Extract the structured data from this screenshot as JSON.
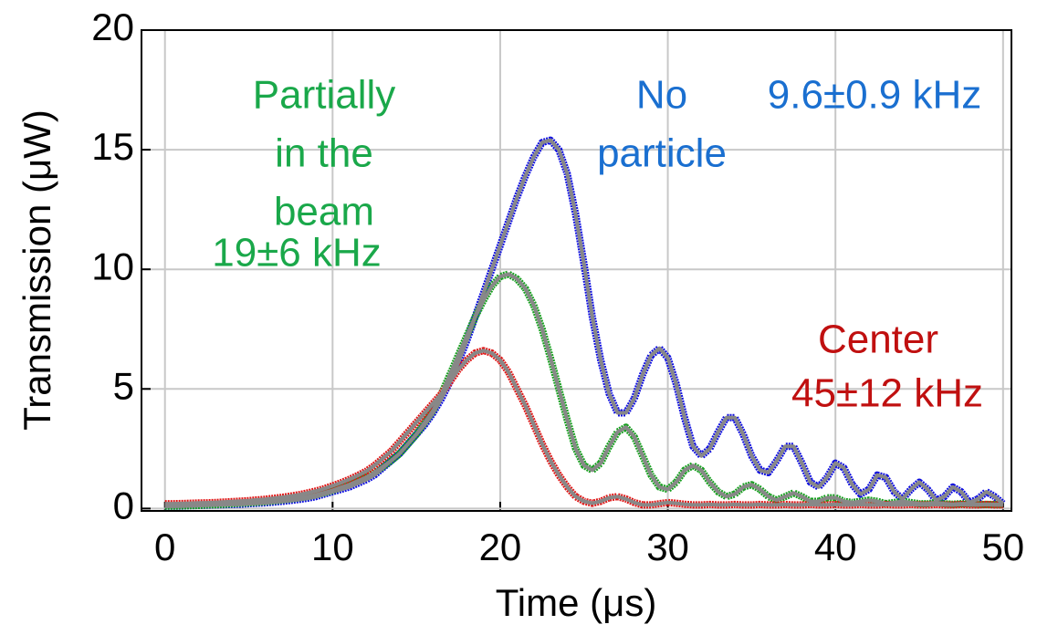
{
  "chart_data": {
    "type": "line",
    "xlabel": "Time (μs)",
    "ylabel": "Transmission (μW)",
    "x": [
      0,
      0.5,
      1,
      1.5,
      2,
      2.5,
      3,
      3.5,
      4,
      4.5,
      5,
      5.5,
      6,
      6.5,
      7,
      7.5,
      8,
      8.5,
      9,
      9.5,
      10,
      10.5,
      11,
      11.5,
      12,
      12.5,
      13,
      13.5,
      14,
      14.5,
      15,
      15.5,
      16,
      16.5,
      17,
      17.5,
      18,
      18.5,
      19,
      19.5,
      20,
      20.5,
      21,
      21.5,
      22,
      22.5,
      23,
      23.5,
      24,
      24.5,
      25,
      25.5,
      26,
      26.5,
      27,
      27.5,
      28,
      28.5,
      29,
      29.5,
      30,
      30.5,
      31,
      31.5,
      32,
      32.5,
      33,
      33.5,
      34,
      34.5,
      35,
      35.5,
      36,
      36.5,
      37,
      37.5,
      38,
      38.5,
      39,
      39.5,
      40,
      40.5,
      41,
      41.5,
      42,
      42.5,
      43,
      43.5,
      44,
      44.5,
      45,
      45.5,
      46,
      46.5,
      47,
      47.5,
      48,
      48.5,
      49,
      49.5,
      50
    ],
    "series": [
      {
        "color": "#1010e0",
        "values": [
          0.1,
          0.1,
          0.1,
          0.12,
          0.13,
          0.14,
          0.15,
          0.16,
          0.17,
          0.18,
          0.2,
          0.22,
          0.24,
          0.27,
          0.3,
          0.34,
          0.38,
          0.43,
          0.5,
          0.6,
          0.7,
          0.8,
          0.9,
          1.05,
          1.2,
          1.4,
          1.7,
          2.0,
          2.3,
          2.7,
          3.1,
          3.5,
          4.0,
          4.6,
          5.3,
          6.1,
          7.0,
          8.0,
          9.0,
          10.0,
          11.0,
          12.0,
          13.0,
          13.9,
          14.7,
          15.3,
          15.4,
          15.0,
          14.0,
          12.3,
          10.2,
          8.0,
          6.2,
          4.8,
          4.0,
          4.0,
          4.6,
          5.6,
          6.4,
          6.7,
          6.3,
          5.2,
          3.8,
          2.6,
          2.2,
          2.5,
          3.2,
          3.8,
          3.8,
          3.1,
          2.2,
          1.6,
          1.5,
          2.0,
          2.6,
          2.6,
          1.9,
          1.1,
          0.9,
          1.3,
          1.9,
          1.7,
          1.0,
          0.6,
          0.8,
          1.4,
          1.3,
          0.7,
          0.4,
          0.8,
          1.1,
          0.8,
          0.35,
          0.5,
          0.9,
          0.7,
          0.25,
          0.4,
          0.7,
          0.5,
          0.2
        ]
      },
      {
        "color": "#18a020",
        "values": [
          0.1,
          0.1,
          0.11,
          0.12,
          0.13,
          0.15,
          0.16,
          0.18,
          0.2,
          0.22,
          0.24,
          0.26,
          0.29,
          0.32,
          0.36,
          0.4,
          0.45,
          0.5,
          0.57,
          0.66,
          0.76,
          0.88,
          1.0,
          1.15,
          1.3,
          1.5,
          1.75,
          2.0,
          2.3,
          2.7,
          3.1,
          3.6,
          4.1,
          4.8,
          5.6,
          6.4,
          7.2,
          8.0,
          8.7,
          9.3,
          9.7,
          9.8,
          9.6,
          9.2,
          8.5,
          7.5,
          6.3,
          5.0,
          3.7,
          2.5,
          1.8,
          1.6,
          1.9,
          2.6,
          3.2,
          3.4,
          3.0,
          2.2,
          1.4,
          0.9,
          0.8,
          1.1,
          1.6,
          1.8,
          1.6,
          1.1,
          0.7,
          0.5,
          0.6,
          0.9,
          1.0,
          0.8,
          0.5,
          0.35,
          0.5,
          0.65,
          0.5,
          0.3,
          0.3,
          0.45,
          0.45,
          0.3,
          0.25,
          0.3,
          0.35,
          0.3,
          0.2,
          0.25,
          0.3,
          0.25,
          0.2,
          0.2,
          0.25,
          0.2,
          0.18,
          0.2,
          0.2,
          0.18,
          0.17,
          0.17,
          0.17
        ]
      },
      {
        "color": "#e01818",
        "values": [
          0.2,
          0.2,
          0.21,
          0.22,
          0.23,
          0.24,
          0.25,
          0.27,
          0.29,
          0.31,
          0.33,
          0.36,
          0.39,
          0.43,
          0.47,
          0.52,
          0.58,
          0.65,
          0.73,
          0.83,
          0.95,
          1.08,
          1.22,
          1.38,
          1.56,
          1.8,
          2.1,
          2.4,
          2.8,
          3.2,
          3.6,
          4.0,
          4.4,
          4.8,
          5.3,
          5.8,
          6.2,
          6.5,
          6.6,
          6.5,
          6.2,
          5.7,
          5.0,
          4.3,
          3.5,
          2.7,
          2.0,
          1.4,
          0.9,
          0.5,
          0.3,
          0.22,
          0.3,
          0.45,
          0.5,
          0.4,
          0.25,
          0.15,
          0.15,
          0.2,
          0.25,
          0.22,
          0.18,
          0.15,
          0.15,
          0.17,
          0.15,
          0.15,
          0.17,
          0.15,
          0.15,
          0.17,
          0.15,
          0.15,
          0.17,
          0.15,
          0.15,
          0.17,
          0.15,
          0.15,
          0.17,
          0.15,
          0.15,
          0.17,
          0.15,
          0.15,
          0.17,
          0.15,
          0.15,
          0.17,
          0.15,
          0.15,
          0.17,
          0.15,
          0.15,
          0.17,
          0.15,
          0.15,
          0.17,
          0.15,
          0.15
        ]
      }
    ],
    "fit_color": "#888888",
    "annotations": [
      {
        "lines": [
          "Partially",
          "in the",
          "beam"
        ],
        "color": "#1aa84a"
      },
      {
        "lines": [
          "19±6 kHz"
        ],
        "color": "#1aa84a"
      },
      {
        "lines": [
          "No",
          "particle"
        ],
        "color": "#1a6fd0"
      },
      {
        "lines": [
          "9.6±0.9 kHz"
        ],
        "color": "#1a6fd0"
      },
      {
        "lines": [
          "Center"
        ],
        "color": "#c01010"
      },
      {
        "lines": [
          "45±12 kHz"
        ],
        "color": "#c01010"
      }
    ],
    "xlim": [
      -1.4,
      50.5
    ],
    "ylim": [
      -0.1,
      20
    ],
    "xticks": [
      0,
      10,
      20,
      30,
      40,
      50
    ],
    "yticks": [
      0,
      5,
      10,
      15,
      20
    ],
    "grid": true
  }
}
